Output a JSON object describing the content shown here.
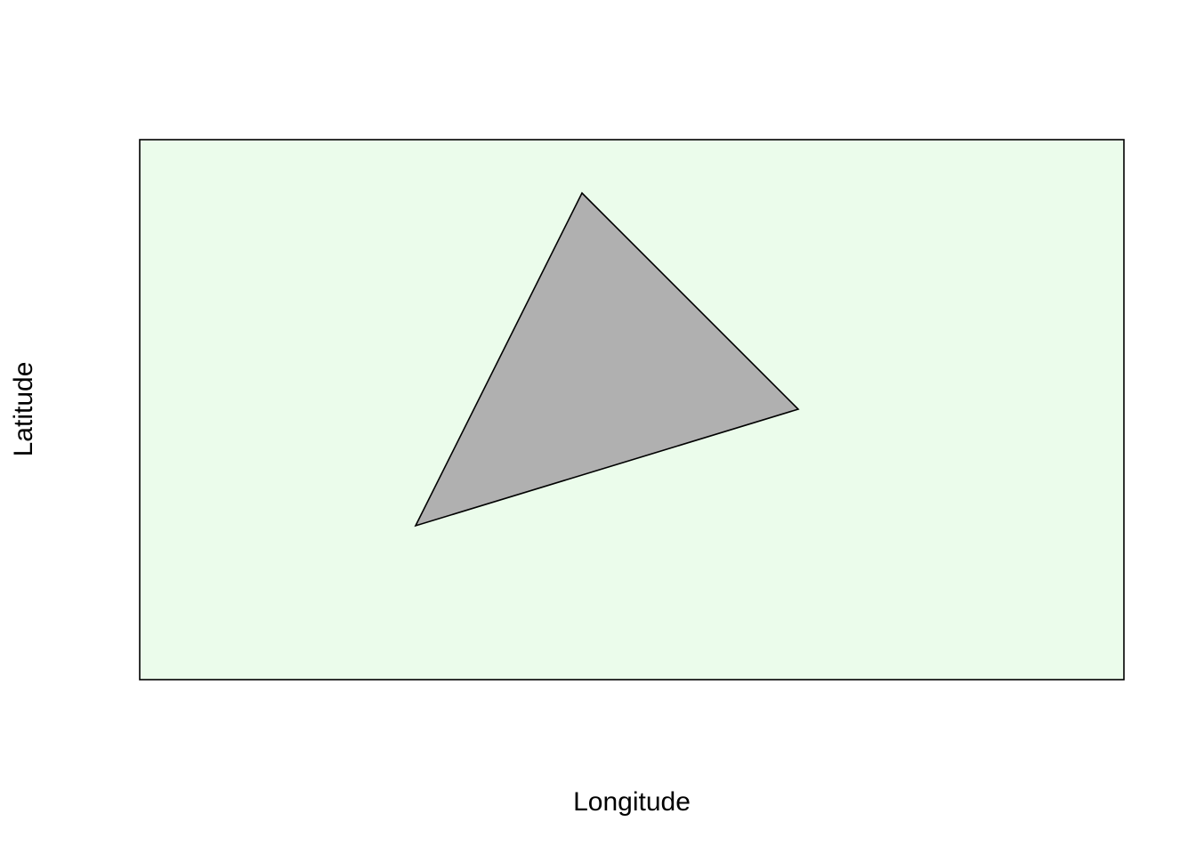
{
  "map": {
    "xlabel": "Longitude",
    "ylabel": "Latitude",
    "colors": {
      "background": "#ebfceb",
      "polygon_fill": "#b0b0b0",
      "stroke": "#000000"
    }
  },
  "chart_data": {
    "type": "polygon",
    "title": "",
    "xlabel": "Longitude",
    "ylabel": "Latitude",
    "grid": false,
    "axes_ticks": false,
    "polygons": [
      {
        "shape": "triangle",
        "fill": "#b0b0b0",
        "stroke": "#000000"
      }
    ]
  }
}
